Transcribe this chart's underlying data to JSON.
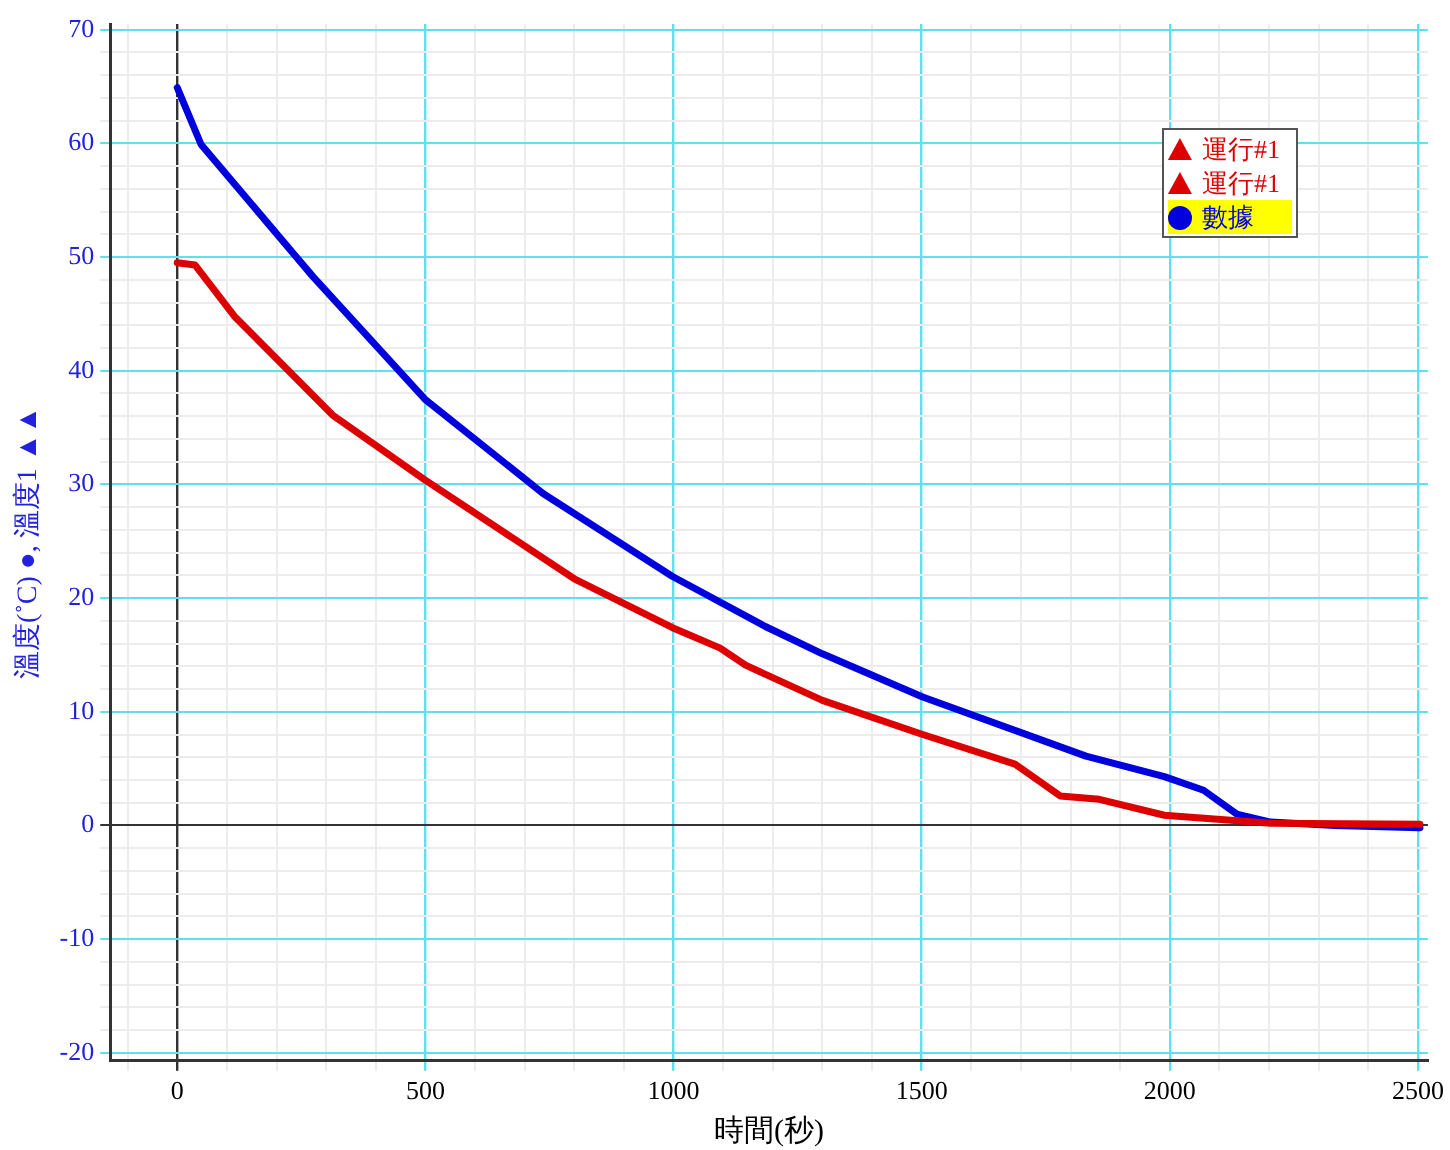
{
  "chart_data": {
    "type": "line",
    "xlabel": "時間(秒)",
    "ylabel": "溫度(˚C) ●, 溫度1 ▲▲",
    "xlim": [
      -135,
      2520
    ],
    "ylim": [
      -20.7,
      70.5
    ],
    "xticks": [
      {
        "value": -100,
        "label": null
      },
      0,
      {
        "value": 100,
        "label": null
      },
      {
        "value": 200,
        "label": null
      },
      {
        "value": 300,
        "label": null
      },
      {
        "value": 400,
        "label": null
      },
      500,
      {
        "value": 600,
        "label": null
      },
      {
        "value": 700,
        "label": null
      },
      {
        "value": 800,
        "label": null
      },
      {
        "value": 900,
        "label": null
      },
      1000,
      {
        "value": 1100,
        "label": null
      },
      {
        "value": 1200,
        "label": null
      },
      {
        "value": 1300,
        "label": null
      },
      {
        "value": 1400,
        "label": null
      },
      1500,
      {
        "value": 1600,
        "label": null
      },
      {
        "value": 1700,
        "label": null
      },
      {
        "value": 1800,
        "label": null
      },
      {
        "value": 1900,
        "label": null
      },
      2000,
      {
        "value": 2100,
        "label": null
      },
      {
        "value": 2200,
        "label": null
      },
      {
        "value": 2300,
        "label": null
      },
      {
        "value": 2400,
        "label": null
      },
      2500
    ],
    "yticks": [
      -20,
      {
        "value": -18,
        "label": null
      },
      {
        "value": -16,
        "label": null
      },
      {
        "value": -14,
        "label": null
      },
      {
        "value": -12,
        "label": null
      },
      -10,
      {
        "value": -8,
        "label": null
      },
      {
        "value": -6,
        "label": null
      },
      {
        "value": -4,
        "label": null
      },
      {
        "value": -2,
        "label": null
      },
      0,
      {
        "value": 2,
        "label": null
      },
      {
        "value": 4,
        "label": null
      },
      {
        "value": 6,
        "label": null
      },
      {
        "value": 8,
        "label": null
      },
      10,
      {
        "value": 12,
        "label": null
      },
      {
        "value": 14,
        "label": null
      },
      {
        "value": 16,
        "label": null
      },
      {
        "value": 18,
        "label": null
      },
      20,
      {
        "value": 22,
        "label": null
      },
      {
        "value": 24,
        "label": null
      },
      {
        "value": 26,
        "label": null
      },
      {
        "value": 28,
        "label": null
      },
      30,
      {
        "value": 32,
        "label": null
      },
      {
        "value": 34,
        "label": null
      },
      {
        "value": 36,
        "label": null
      },
      {
        "value": 38,
        "label": null
      },
      40,
      {
        "value": 42,
        "label": null
      },
      {
        "value": 44,
        "label": null
      },
      {
        "value": 46,
        "label": null
      },
      {
        "value": 48,
        "label": null
      },
      50,
      {
        "value": 52,
        "label": null
      },
      {
        "value": 54,
        "label": null
      },
      {
        "value": 56,
        "label": null
      },
      {
        "value": 58,
        "label": null
      },
      60,
      {
        "value": 62,
        "label": null
      },
      {
        "value": 64,
        "label": null
      },
      {
        "value": 66,
        "label": null
      },
      {
        "value": 68,
        "label": null
      },
      70
    ],
    "grid": true,
    "legend": "top right",
    "line_style": "solid",
    "series": [
      {
        "name": "運行#1",
        "color": "#dd0000",
        "x": [
          0,
          36,
          115,
          313,
          499,
          800,
          998,
          1094,
          1145,
          1300,
          1502,
          1688,
          1779,
          1858,
          1989,
          2203,
          2504
        ],
        "values": [
          49.5,
          49.3,
          44.8,
          36.1,
          30.4,
          21.7,
          17.4,
          15.6,
          14.1,
          11,
          8.0,
          5.4,
          2.6,
          2.3,
          0.9,
          0.2,
          0.1
        ]
      },
      {
        "name": "運行#1",
        "color": "#dd0000",
        "values": [
          null
        ]
      },
      {
        "name": "數據",
        "color": "#0000dd",
        "x": [
          0,
          48,
          273,
          499,
          737,
          998,
          1185,
          1300,
          1502,
          1831,
          1989,
          2068,
          2135,
          2203,
          2333,
          2504
        ],
        "values": [
          64.9,
          59.9,
          48.3,
          37.5,
          29.2,
          21.9,
          17.5,
          15.1,
          11.3,
          6.1,
          4.3,
          3.1,
          1.0,
          0.3,
          0,
          -0.2
        ]
      }
    ]
  }
}
